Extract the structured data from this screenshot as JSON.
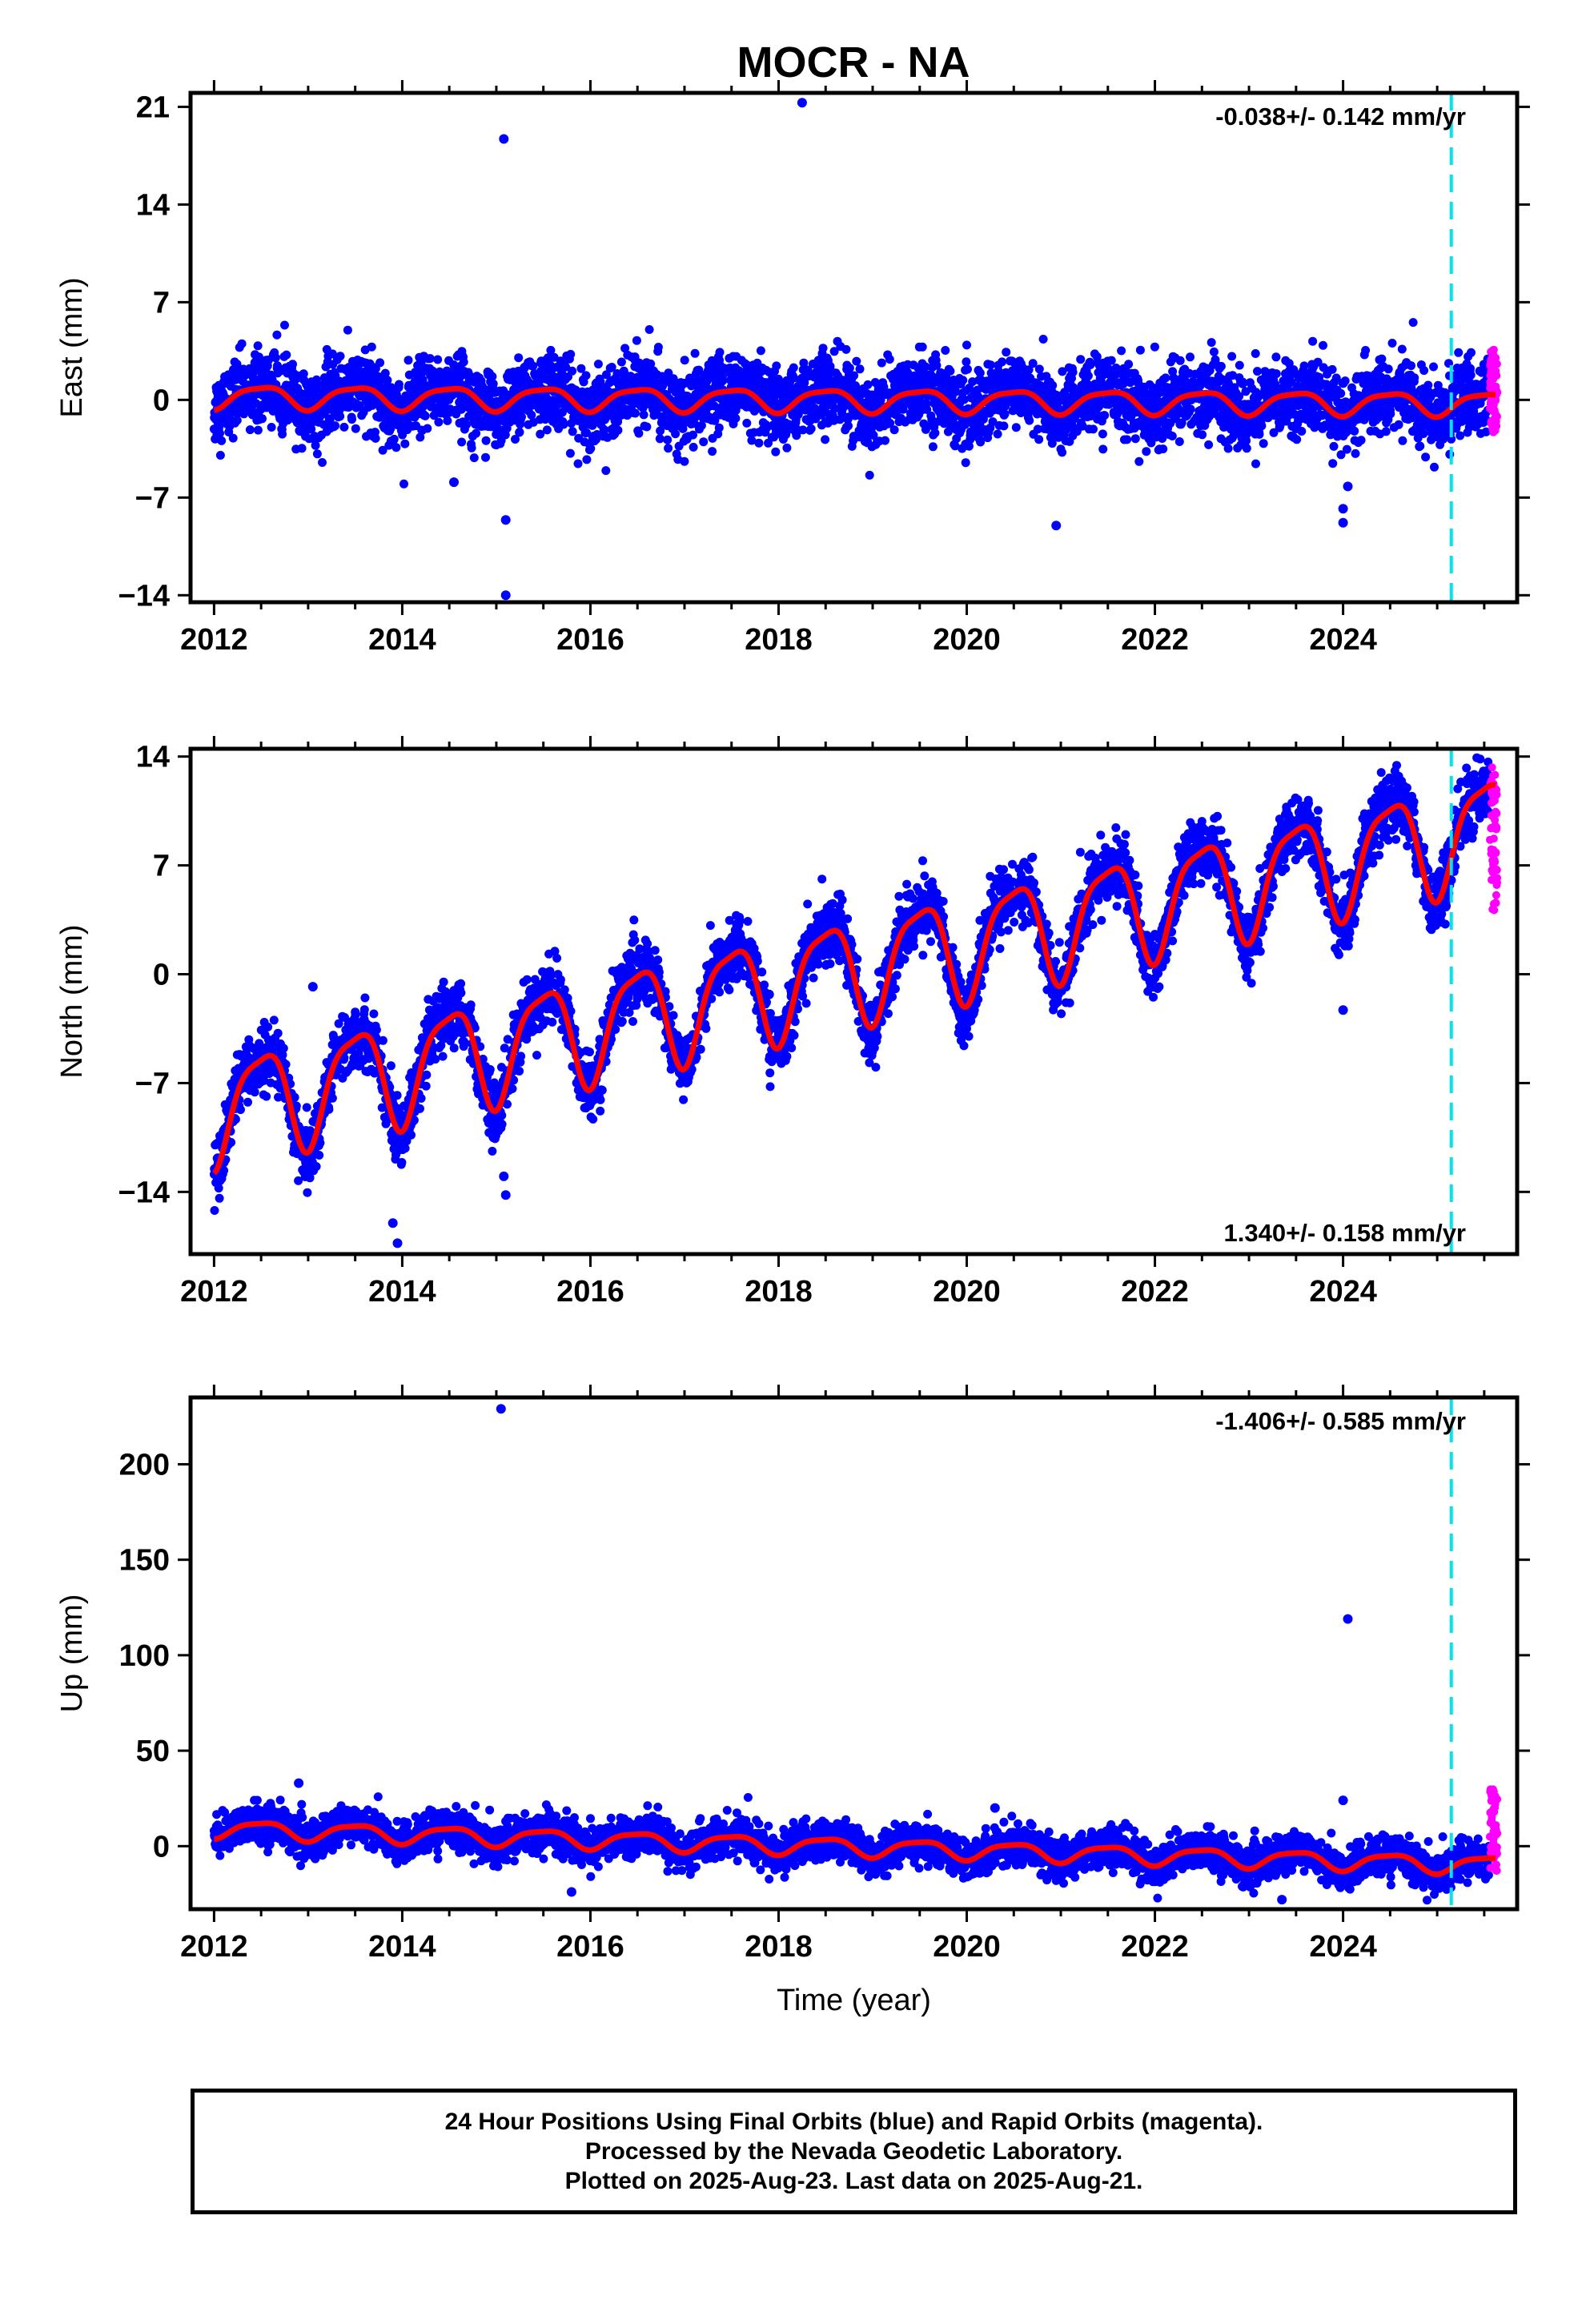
{
  "title": "MOCR - NA",
  "colors": {
    "final": "#0000ff",
    "rapid": "#ff00ff",
    "model": "#ff0000",
    "marker": "#00e5ee",
    "frame": "#000000"
  },
  "chart_data": [
    {
      "type": "scatter",
      "ylabel": "East (mm)",
      "xlim": [
        2011.75,
        2025.85
      ],
      "ylim": [
        -14.5,
        22
      ],
      "xticks": [
        "2012",
        "2014",
        "2016",
        "2018",
        "2020",
        "2022",
        "2024"
      ],
      "yticks": [
        "−14",
        "−7",
        "0",
        "7",
        "14",
        "21"
      ],
      "rate": "-0.038+/- 0.142 mm/yr",
      "rate_position": "top-right",
      "marker_x": 2025.15,
      "trend": {
        "slope": -0.038,
        "annual_amplitude": 0.8,
        "scatter": 1.3
      },
      "outliers": [
        {
          "x": 2015.08,
          "y": 18.7
        },
        {
          "x": 2018.25,
          "y": 21.3
        },
        {
          "x": 2015.1,
          "y": -8.6
        },
        {
          "x": 2015.1,
          "y": -14.0
        },
        {
          "x": 2014.55,
          "y": -5.9
        },
        {
          "x": 2020.95,
          "y": -9.0
        },
        {
          "x": 2024.0,
          "y": -8.8
        },
        {
          "x": 2024.0,
          "y": -7.8
        },
        {
          "x": 2024.05,
          "y": -6.2
        },
        {
          "x": 2024.0,
          "y": 1.2
        }
      ],
      "rapid_range": [
        -3,
        3.7
      ]
    },
    {
      "type": "scatter",
      "ylabel": "North (mm)",
      "xlim": [
        2011.75,
        2025.85
      ],
      "ylim": [
        -18,
        14.5
      ],
      "xticks": [
        "2012",
        "2014",
        "2016",
        "2018",
        "2020",
        "2022",
        "2024"
      ],
      "yticks": [
        "−14",
        "−7",
        "0",
        "7",
        "14"
      ],
      "rate": "1.340+/- 0.158 mm/yr",
      "rate_position": "bottom-right",
      "marker_x": 2025.15,
      "trend": {
        "slope": 1.34,
        "annual_amplitude": 3.3,
        "scatter": 1.0
      },
      "outliers": [
        {
          "x": 2013.9,
          "y": -16.0
        },
        {
          "x": 2013.95,
          "y": -17.3
        },
        {
          "x": 2015.08,
          "y": -13.0
        },
        {
          "x": 2015.1,
          "y": -14.2
        },
        {
          "x": 2017.9,
          "y": -1.3
        },
        {
          "x": 2024.0,
          "y": -2.3
        },
        {
          "x": 2013.05,
          "y": -0.8
        }
      ],
      "rapid_range": [
        4,
        13.3
      ]
    },
    {
      "type": "scatter",
      "ylabel": "Up (mm)",
      "xlabel": "Time (year)",
      "xlim": [
        2011.75,
        2025.85
      ],
      "ylim": [
        -33,
        235
      ],
      "xticks": [
        "2012",
        "2014",
        "2016",
        "2018",
        "2020",
        "2022",
        "2024"
      ],
      "yticks": [
        "0",
        "50",
        "100",
        "150",
        "200"
      ],
      "rate": "-1.406+/- 0.585 mm/yr",
      "rate_position": "top-right",
      "marker_x": 2025.15,
      "trend": {
        "slope": -1.406,
        "annual_amplitude": 4.5,
        "scatter": 5.0
      },
      "outliers": [
        {
          "x": 2015.05,
          "y": 229
        },
        {
          "x": 2024.05,
          "y": 119
        },
        {
          "x": 2015.8,
          "y": -24
        },
        {
          "x": 2023.35,
          "y": -28
        },
        {
          "x": 2020.3,
          "y": 20
        },
        {
          "x": 2024.0,
          "y": 24
        },
        {
          "x": 2012.9,
          "y": 33
        }
      ],
      "rapid_range": [
        -13,
        31
      ]
    }
  ],
  "footer": {
    "line1": "24 Hour Positions Using Final Orbits (blue) and Rapid Orbits (magenta).",
    "line2": "Processed by the Nevada Geodetic Laboratory.",
    "line3": "Plotted on 2025-Aug-23. Last data on 2025-Aug-21."
  }
}
